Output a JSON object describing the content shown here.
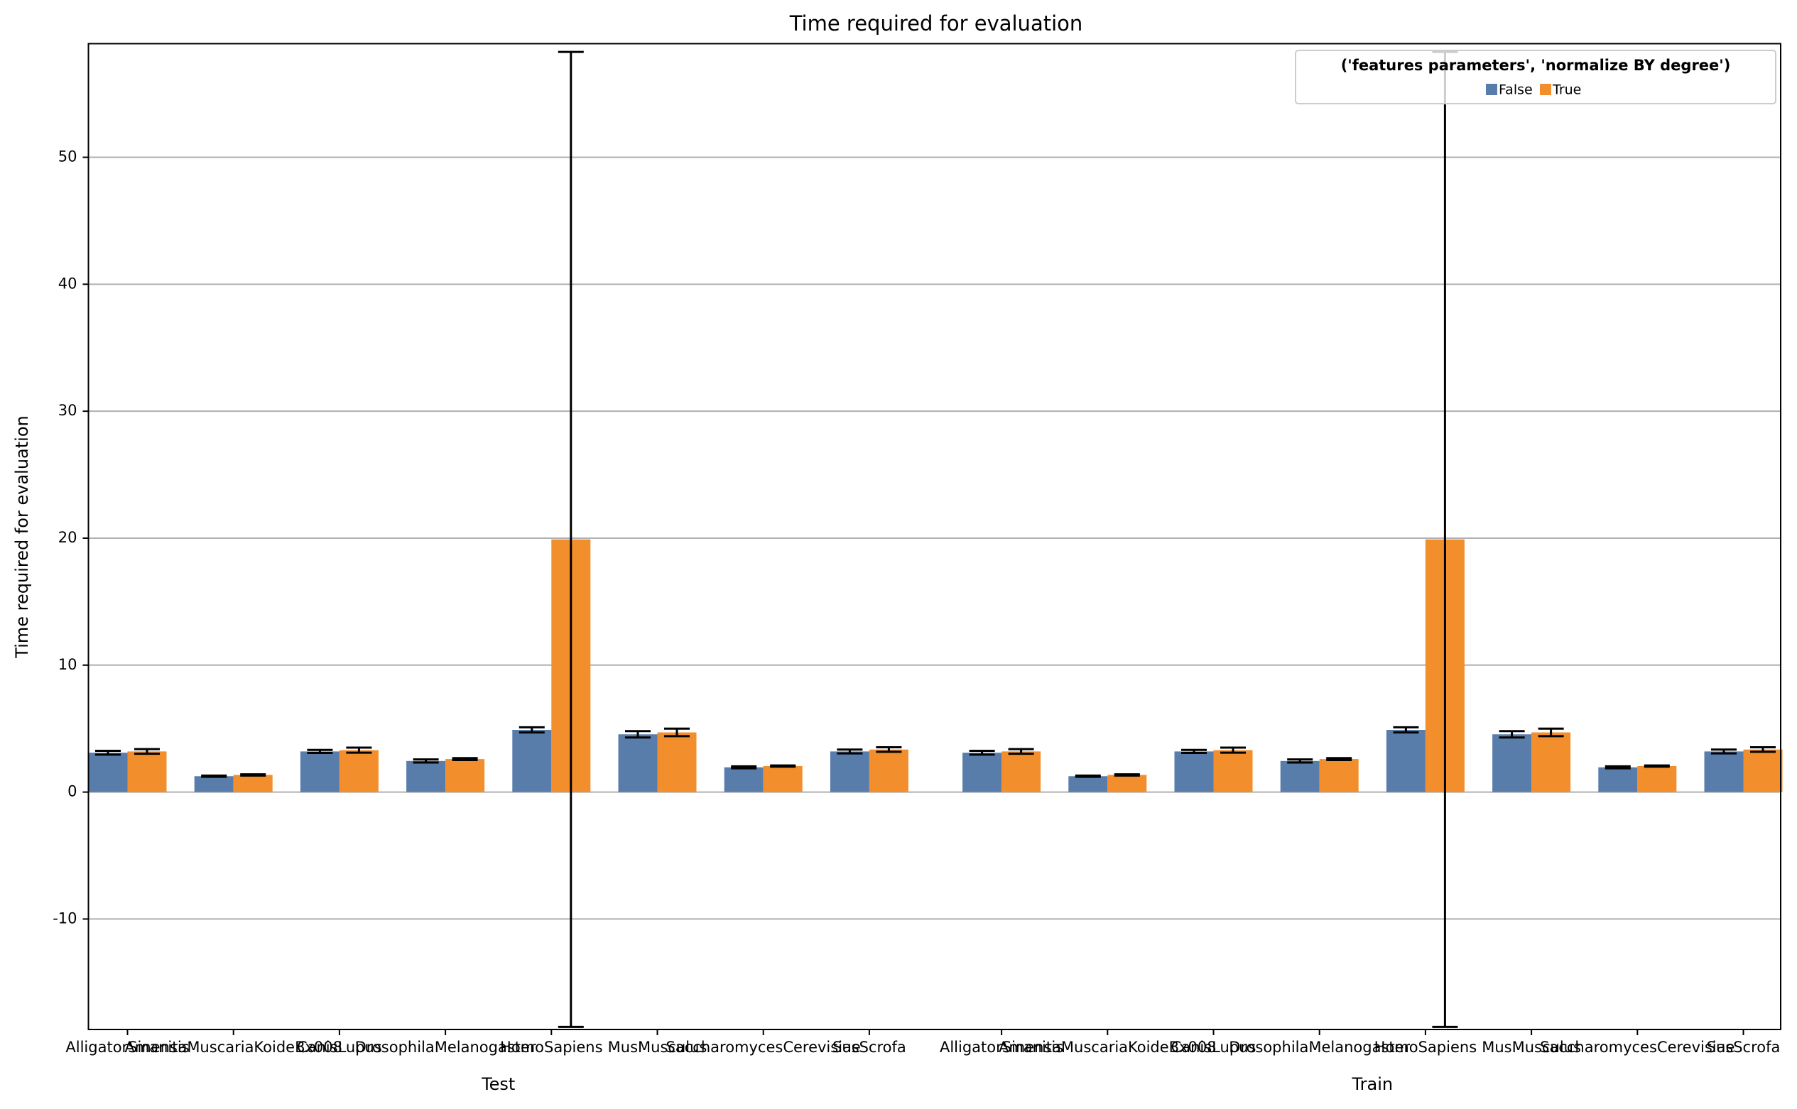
{
  "chart_data": {
    "type": "bar",
    "title": "Time required for evaluation",
    "y_label": "Time required for evaluation",
    "groups": [
      "Test",
      "Train"
    ],
    "categories": [
      "AlligatorSinensis",
      "AmanitaMuscariaKoideBx008",
      "CanisLupus",
      "DrosophilaMelanogaster",
      "HomoSapiens",
      "MusMusculus",
      "SaccharomycesCerevisiae",
      "SusScrofa",
      "AlligatorSinensis",
      "AmanitaMuscariaKoideBx008",
      "CanisLupus",
      "DrosophilaMelanogaster",
      "HomoSapiens",
      "MusMusculus",
      "SaccharomycesCerevisiae",
      "SusScrofa"
    ],
    "legend_title": "('features parameters', 'normalize BY degree')",
    "legend_position": "upper right",
    "series": [
      {
        "name": "False",
        "color": "#597dab",
        "values": [
          3.1,
          1.25,
          3.2,
          2.45,
          4.9,
          4.55,
          1.95,
          3.2,
          3.1,
          1.25,
          3.2,
          2.45,
          4.9,
          4.55,
          1.95,
          3.2
        ],
        "errors": [
          0.15,
          0.05,
          0.12,
          0.12,
          0.2,
          0.25,
          0.08,
          0.15,
          0.15,
          0.05,
          0.12,
          0.12,
          0.2,
          0.25,
          0.08,
          0.15
        ]
      },
      {
        "name": "True",
        "color": "#f28e2b",
        "values": [
          3.2,
          1.35,
          3.3,
          2.6,
          19.9,
          4.7,
          2.05,
          3.35,
          3.2,
          1.35,
          3.3,
          2.6,
          19.9,
          4.7,
          2.05,
          3.35
        ],
        "errors": [
          0.18,
          0.05,
          0.2,
          0.08,
          38.4,
          0.3,
          0.05,
          0.18,
          0.18,
          0.05,
          0.2,
          0.08,
          38.4,
          0.3,
          0.05,
          0.18
        ]
      }
    ],
    "ylim": [
      -18.7,
      58.95
    ],
    "yticks": [
      -10,
      0,
      10,
      20,
      30,
      40,
      50
    ],
    "grid": true
  }
}
